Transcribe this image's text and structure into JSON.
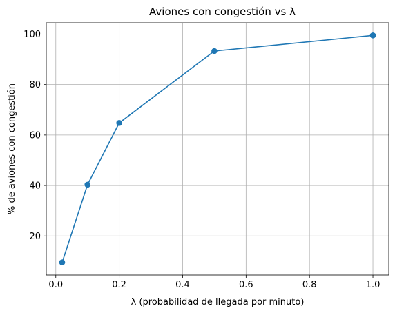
{
  "chart_data": {
    "type": "line",
    "title": "Aviones con congestión vs λ",
    "xlabel": "λ (probabilidad de llegada por minuto)",
    "ylabel": "% de aviones con congestión",
    "xlim": [
      -0.03,
      1.05
    ],
    "ylim": [
      4.5,
      104.5
    ],
    "xticks": [
      0.0,
      0.2,
      0.4,
      0.6,
      0.8,
      1.0
    ],
    "xtick_labels": [
      "0.0",
      "0.2",
      "0.4",
      "0.6",
      "0.8",
      "1.0"
    ],
    "yticks": [
      20,
      40,
      60,
      80,
      100
    ],
    "ytick_labels": [
      "20",
      "40",
      "60",
      "80",
      "100"
    ],
    "grid": true,
    "color": "#1f77b4",
    "marker": "circle",
    "series": [
      {
        "x": [
          0.02,
          0.1,
          0.2,
          0.5,
          1.0
        ],
        "values": [
          9.5,
          40.3,
          64.8,
          93.3,
          99.5
        ]
      }
    ]
  }
}
